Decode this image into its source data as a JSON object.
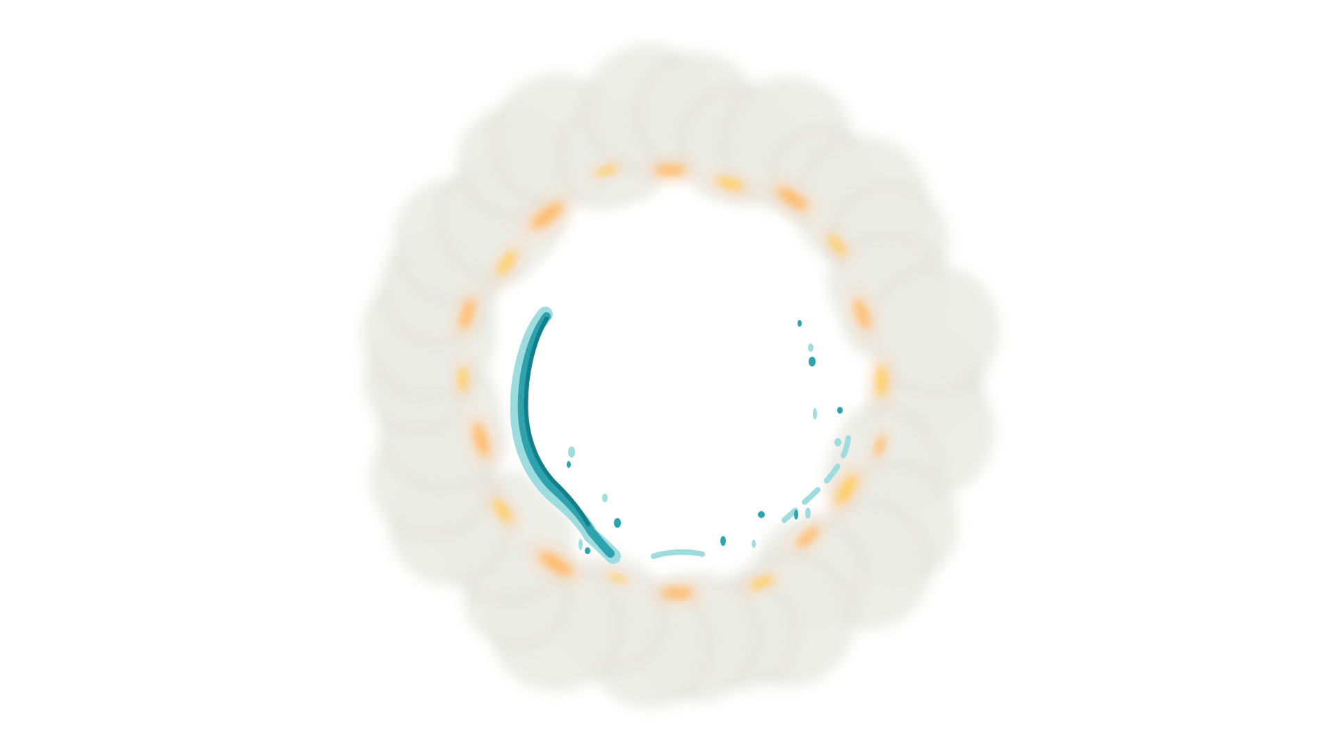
{
  "scene": {
    "background_color": "#ffffff",
    "subject": "vfx-ring-burst",
    "colors": {
      "smoke": "#ecece6",
      "smoke_edge": "#dcdcd3",
      "fire_outer": "#ffd2a8",
      "fire_mid": "#ffb45a",
      "fire_core": "#ffcc4d",
      "water_dark": "#137f8a",
      "water_mid": "#2fa3ad",
      "water_light": "#9fdcdf"
    }
  }
}
